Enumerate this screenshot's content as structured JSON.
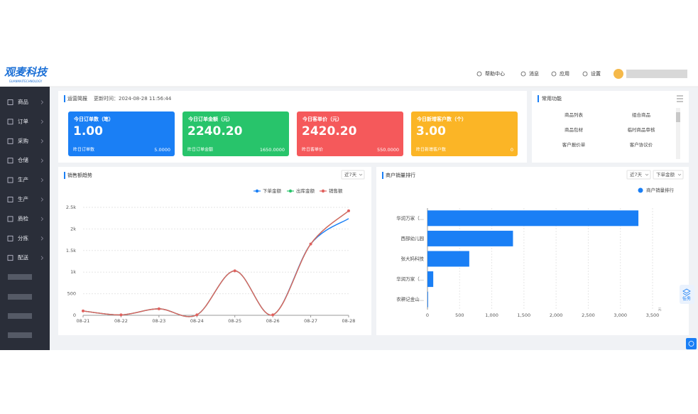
{
  "header": {
    "logo": "观麦科技",
    "logo_sub": "GUANMAITECHNOLOGY",
    "nav": [
      "帮助中心",
      "消息",
      "应用",
      "设置"
    ]
  },
  "sidebar": {
    "items": [
      "商品",
      "订单",
      "采购",
      "仓储",
      "生产",
      "生产",
      "质检",
      "分拣",
      "配送"
    ]
  },
  "overview": {
    "title": "运营简报",
    "updated": "更新时间：2024-08-28 11:56:44",
    "cards": [
      {
        "title": "今日订单数（笔）",
        "value": "1.00",
        "sub_label": "昨日订单数",
        "sub_value": "5.0000",
        "color": "#1a7ff5"
      },
      {
        "title": "今日订单金额（元）",
        "value": "2240.20",
        "sub_label": "昨日订单金额",
        "sub_value": "1650.0000",
        "color": "#28c46b"
      },
      {
        "title": "今日客单价（元）",
        "value": "2420.20",
        "sub_label": "昨日客单价",
        "sub_value": "550.0000",
        "color": "#f5595b"
      },
      {
        "title": "今日新增客户数（个）",
        "value": "3.00",
        "sub_label": "昨日新增客户数",
        "sub_value": "0",
        "color": "#fbb526"
      }
    ]
  },
  "shortcuts": {
    "title": "常用功能",
    "items": [
      "商品列表",
      "组合商品",
      "商品包材",
      "临时商品审核",
      "客户报价单",
      "客户协议价"
    ]
  },
  "side_button": "任务",
  "chart_data": [
    {
      "type": "line",
      "title": "销售额趋势",
      "filter": "近7天",
      "x": [
        "08-21",
        "08-22",
        "08-23",
        "08-24",
        "08-25",
        "08-26",
        "08-27",
        "08-28"
      ],
      "series": [
        {
          "name": "下单金额",
          "color": "#1a7ff5",
          "values": [
            100,
            10,
            150,
            10,
            1030,
            10,
            1650,
            2240
          ]
        },
        {
          "name": "出库金额",
          "color": "#28c46b",
          "values": [
            100,
            10,
            150,
            10,
            1030,
            10,
            1650,
            2420
          ]
        },
        {
          "name": "销售额",
          "color": "#e0625f",
          "values": [
            100,
            10,
            150,
            10,
            1030,
            10,
            1650,
            2420
          ]
        }
      ],
      "ylim": [
        0,
        2500
      ],
      "yticks": [
        0,
        500,
        {
          "value": 1000,
          "label": "1k"
        },
        {
          "value": 1500,
          "label": "1.5k"
        },
        {
          "value": 2000,
          "label": "2k"
        },
        {
          "value": 2500,
          "label": "2.5k"
        }
      ],
      "grid": true
    },
    {
      "type": "hbar",
      "title": "商户销量排行",
      "filters": [
        "近7天",
        "下单金额"
      ],
      "categories": [
        "华润万家（...",
        "西部幼儿园",
        "张大妈科技",
        "华润万家（...",
        "农耕记金山..."
      ],
      "series": [
        {
          "name": "商户销量排行",
          "color": "#1a7ff5",
          "values": [
            3280,
            1330,
            650,
            90,
            10
          ]
        }
      ],
      "xlim": [
        0,
        3500
      ],
      "xticks": [
        0,
        500,
        {
          "value": 1000,
          "label": "1,000"
        },
        {
          "value": 1500,
          "label": "1,500"
        },
        {
          "value": 2000,
          "label": "2,000"
        },
        {
          "value": 2500,
          "label": "2,500"
        },
        {
          "value": 3000,
          "label": "3,000"
        },
        {
          "value": 3500,
          "label": "3,500"
        }
      ],
      "x_unit": "元",
      "grid": true
    }
  ]
}
